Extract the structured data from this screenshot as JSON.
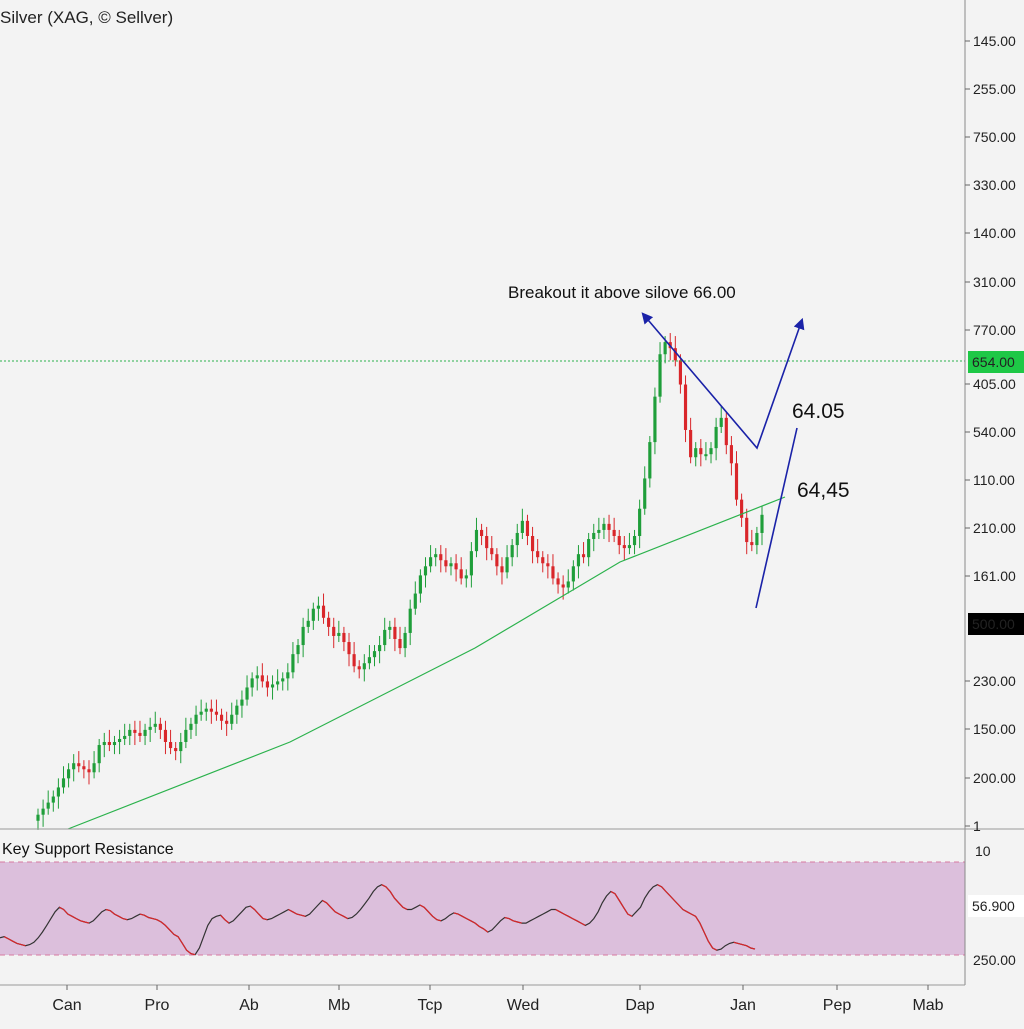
{
  "title": "Silver (XAG, © Sellver)",
  "indicator_title": "Key Support Resistance",
  "colors": {
    "background": "#f3f3f3",
    "up": "#1f9e3a",
    "down": "#d9262a",
    "trendline": "#2bb24c",
    "arrow": "#1a22a8",
    "indicator_band": "#dcbfdc",
    "indicator_line": "#333333",
    "indicator_line_hot": "#d9262a",
    "price_badge_green": "#1ec846",
    "price_badge_black": "#000000",
    "price_badge_red": "#e01e1e"
  },
  "chart_data": {
    "type": "candlestick",
    "price_axis_labels": [
      "145.00",
      "255.00",
      "750.00",
      "330.00",
      "140.00",
      "310.00",
      "770.00",
      "405.00",
      "540.00",
      "110.00",
      "210.00",
      "161.00",
      "230.00",
      "150.00",
      "200.00",
      "1"
    ],
    "price_badges": [
      {
        "label": "654.00",
        "color": "green"
      },
      {
        "label": "500.00",
        "color": "black"
      }
    ],
    "x_labels": [
      "Can",
      "Pro",
      "Ab",
      "Mb",
      "Tcp",
      "Wed",
      "Dap",
      "Jan",
      "Pep",
      "Mab"
    ],
    "annotations": {
      "headline": "Breakout it above silove 66.00",
      "upper_target": "64.05",
      "lower_target": "64,45"
    },
    "candle_closes": [
      10,
      12,
      14,
      16,
      19,
      22,
      25,
      27,
      26,
      25,
      24,
      27,
      33,
      34,
      33,
      34,
      35,
      36,
      38,
      37,
      36,
      38,
      39,
      40,
      38,
      34,
      32,
      31,
      34,
      38,
      40,
      43,
      44,
      45,
      44,
      43,
      41,
      40,
      43,
      46,
      48,
      52,
      55,
      56,
      54,
      52,
      53,
      54,
      55,
      57,
      63,
      66,
      72,
      74,
      78,
      79,
      75,
      72,
      69,
      70,
      67,
      63,
      59,
      58,
      60,
      62,
      64,
      66,
      71,
      72,
      68,
      65,
      70,
      78,
      83,
      89,
      92,
      95,
      96,
      94,
      92,
      93,
      91,
      88,
      89,
      97,
      104,
      102,
      98,
      96,
      92,
      90,
      95,
      99,
      103,
      107,
      102,
      97,
      95,
      93,
      92,
      88,
      86,
      85,
      87,
      92,
      96,
      95,
      101,
      103,
      104,
      106,
      104,
      102,
      99,
      98,
      99,
      102,
      111,
      121,
      133,
      148,
      162,
      166,
      164,
      160,
      152,
      137,
      128,
      131,
      129,
      129,
      131,
      138,
      141,
      132,
      126,
      114,
      108,
      100,
      99,
      103,
      109
    ],
    "indicator": {
      "name": "Key Support Resistance",
      "values": [
        17,
        18,
        16,
        14,
        12,
        11,
        10,
        11,
        13,
        17,
        22,
        28,
        34,
        40,
        44,
        42,
        38,
        36,
        34,
        32,
        31,
        30,
        32,
        36,
        40,
        42,
        41,
        38,
        36,
        34,
        33,
        34,
        36,
        38,
        37,
        35,
        34,
        33,
        31,
        28,
        24,
        20,
        18,
        12,
        6,
        3,
        2,
        8,
        18,
        28,
        34,
        36,
        37,
        33,
        30,
        32,
        36,
        40,
        44,
        45,
        42,
        38,
        34,
        33,
        34,
        36,
        38,
        40,
        42,
        40,
        38,
        37,
        36,
        38,
        42,
        46,
        50,
        48,
        44,
        40,
        38,
        36,
        34,
        35,
        38,
        42,
        47,
        52,
        58,
        62,
        64,
        62,
        58,
        52,
        48,
        44,
        42,
        42,
        44,
        46,
        44,
        40,
        36,
        33,
        32,
        34,
        37,
        39,
        38,
        36,
        34,
        32,
        30,
        27,
        25,
        22,
        24,
        28,
        32,
        35,
        34,
        32,
        31,
        30,
        30,
        32,
        34,
        36,
        38,
        40,
        42,
        42,
        40,
        38,
        36,
        34,
        32,
        30,
        28,
        30,
        34,
        40,
        48,
        54,
        58,
        56,
        50,
        44,
        38,
        36,
        40,
        44,
        52,
        58,
        62,
        64,
        62,
        58,
        54,
        50,
        46,
        42,
        40,
        38,
        36,
        30,
        22,
        14,
        8,
        6,
        7,
        10,
        12,
        13,
        12,
        11,
        10,
        8,
        7
      ],
      "ylim": [
        0,
        100
      ]
    },
    "indicator_axis_labels": [
      "10",
      "250.00"
    ],
    "indicator_badge": {
      "label": "56.900",
      "color": "red"
    },
    "grid": false,
    "legend": "none"
  }
}
